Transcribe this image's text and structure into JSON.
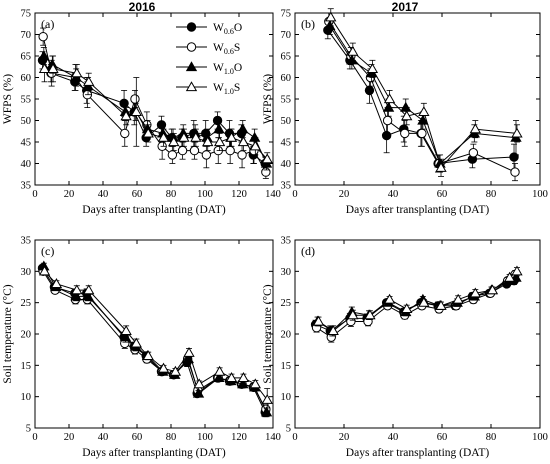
{
  "columns": [
    "2016",
    "2017"
  ],
  "legend": [
    {
      "id": "W06O",
      "base": "W",
      "sub": "0.6",
      "suffix": "O",
      "marker": "circle",
      "fill": "#000000"
    },
    {
      "id": "W06S",
      "base": "W",
      "sub": "0.6",
      "suffix": "S",
      "marker": "circle",
      "fill": "#ffffff"
    },
    {
      "id": "W10O",
      "base": "W",
      "sub": "1.0",
      "suffix": "O",
      "marker": "triangle",
      "fill": "#000000"
    },
    {
      "id": "W10S",
      "base": "W",
      "sub": "1.0",
      "suffix": "S",
      "marker": "triangle",
      "fill": "#ffffff"
    }
  ],
  "chart_data": [
    {
      "type": "line",
      "panel_label": "(a)",
      "xlabel": "Days after transplanting (DAT)",
      "ylabel": "WFPS (%)",
      "xlim": [
        0,
        140
      ],
      "ylim": [
        35,
        75
      ],
      "xticks": [
        0,
        20,
        40,
        60,
        80,
        100,
        120,
        140
      ],
      "yticks": [
        35,
        40,
        45,
        50,
        55,
        60,
        65,
        70,
        75
      ],
      "x": [
        5,
        10,
        24,
        31,
        53,
        59,
        66,
        75,
        81,
        87,
        94,
        101,
        108,
        115,
        122,
        129,
        136
      ],
      "series": [
        {
          "name": "W0.6O",
          "values": [
            64,
            61,
            59,
            57,
            54,
            52,
            46,
            49,
            46,
            46,
            47,
            47,
            50,
            47,
            47,
            42,
            40
          ],
          "err": [
            2,
            2,
            2,
            3,
            3,
            3,
            2,
            2,
            2,
            2,
            3,
            3,
            2,
            3,
            2,
            2,
            1.5
          ]
        },
        {
          "name": "W0.6S",
          "values": [
            69.5,
            61,
            60,
            56,
            47,
            55,
            49,
            44,
            42,
            43,
            43,
            42,
            43,
            43,
            42,
            43,
            38
          ],
          "err": [
            2,
            3,
            3,
            3,
            3,
            2,
            3,
            3,
            2,
            2,
            2,
            3,
            3,
            3,
            3,
            3,
            1.5
          ]
        },
        {
          "name": "W1.0O",
          "values": [
            65,
            63,
            60,
            58,
            52,
            52,
            48,
            47,
            46,
            47,
            47,
            46,
            48,
            46,
            48,
            46,
            40
          ],
          "err": [
            2,
            2,
            2,
            2,
            2,
            2,
            2,
            2,
            2,
            2,
            2,
            2,
            2,
            2,
            2,
            2,
            1.5
          ]
        },
        {
          "name": "W1.0S",
          "values": [
            62,
            62,
            61,
            59,
            51,
            52,
            47,
            46,
            45,
            46,
            46,
            45,
            45,
            46,
            45,
            44,
            41
          ],
          "err": [
            3,
            3,
            2,
            2,
            2,
            8,
            2,
            2,
            2,
            2,
            2,
            2,
            2,
            2,
            2,
            2,
            1.5
          ]
        }
      ]
    },
    {
      "type": "line",
      "panel_label": "(b)",
      "xlabel": "Days after transplanting (DAT)",
      "ylabel": "WFPS (%)",
      "xlim": [
        0,
        100
      ],
      "ylim": [
        35,
        75
      ],
      "xticks": [
        0,
        20,
        40,
        60,
        80,
        100
      ],
      "yticks": [
        35,
        40,
        45,
        50,
        55,
        60,
        65,
        70,
        75
      ],
      "x": [
        14,
        23,
        31,
        38,
        45,
        52,
        59,
        73,
        90
      ],
      "series": [
        {
          "name": "W0.6O",
          "values": [
            71,
            64,
            57,
            46.5,
            48,
            47,
            40,
            41,
            41.5
          ],
          "err": [
            2,
            2,
            3,
            4,
            3,
            3,
            2,
            2,
            3
          ]
        },
        {
          "name": "W0.6S",
          "values": [
            73,
            65,
            60,
            50,
            47,
            47,
            40,
            42.5,
            38
          ],
          "err": [
            2,
            2,
            2,
            3,
            3,
            3,
            2,
            2,
            2
          ]
        },
        {
          "name": "W1.0O",
          "values": [
            72,
            64,
            61,
            53,
            53,
            50,
            40,
            47,
            46
          ],
          "err": [
            2,
            2,
            2,
            2,
            2,
            2,
            2,
            2,
            4
          ]
        },
        {
          "name": "W1.0S",
          "values": [
            74,
            66,
            62,
            55,
            51,
            52,
            39,
            48,
            47
          ],
          "err": [
            2,
            2,
            2,
            2,
            2,
            2,
            2,
            2,
            2
          ]
        }
      ]
    },
    {
      "type": "line",
      "panel_label": "(c)",
      "xlabel": "Days after transplanting (DAT)",
      "ylabel": "Soil temperature (°C)",
      "xlim": [
        0,
        140
      ],
      "ylim": [
        5,
        35
      ],
      "xticks": [
        0,
        20,
        40,
        60,
        80,
        100,
        120,
        140
      ],
      "yticks": [
        5,
        10,
        15,
        20,
        25,
        30,
        35
      ],
      "x": [
        5,
        12,
        24,
        31,
        53,
        59,
        66,
        75,
        82,
        90,
        96,
        108,
        115,
        122,
        129,
        136
      ],
      "series": [
        {
          "name": "W0.6O",
          "values": [
            30.5,
            27.5,
            26.5,
            26.5,
            19.5,
            18,
            16.5,
            14,
            13.5,
            15.5,
            10.5,
            13,
            12.5,
            12,
            11.5,
            7.5
          ],
          "err": [
            0.5,
            0.5,
            0.7,
            0.7,
            0.8,
            0.7,
            0.6,
            0.5,
            0.5,
            0.7,
            0.5,
            0.6,
            0.6,
            0.6,
            0.6,
            0.7
          ]
        },
        {
          "name": "W0.6S",
          "values": [
            30,
            27,
            25.5,
            25.5,
            18.5,
            17.5,
            16,
            14,
            13.5,
            16,
            11,
            13,
            12.5,
            12,
            11.5,
            8
          ],
          "err": [
            0.5,
            0.5,
            0.7,
            0.7,
            0.8,
            0.7,
            0.6,
            0.5,
            0.5,
            0.7,
            0.5,
            0.6,
            0.6,
            0.6,
            0.6,
            0.7
          ]
        },
        {
          "name": "W1.0O",
          "values": [
            30.8,
            27.5,
            26,
            26,
            19.5,
            18,
            16.5,
            14,
            13.5,
            16,
            10.5,
            13,
            12.5,
            12,
            11.5,
            7.5
          ],
          "err": [
            0.5,
            0.5,
            0.7,
            0.7,
            0.8,
            0.7,
            0.6,
            0.5,
            0.5,
            0.7,
            0.5,
            0.6,
            0.6,
            0.6,
            0.6,
            0.7
          ]
        },
        {
          "name": "W1.0S",
          "values": [
            30,
            28,
            27,
            27,
            20.5,
            18.5,
            16.5,
            14.5,
            14,
            17,
            12,
            14,
            13,
            13,
            12,
            9.5
          ],
          "err": [
            0.5,
            0.5,
            0.7,
            0.7,
            0.8,
            0.7,
            0.6,
            0.5,
            0.5,
            0.7,
            0.5,
            0.6,
            0.6,
            0.6,
            0.6,
            1.8
          ]
        }
      ]
    },
    {
      "type": "line",
      "panel_label": "(d)",
      "xlabel": "Days after transplanting (DAT)",
      "ylabel": "Soil temperature (°C)",
      "xlim": [
        0,
        100
      ],
      "ylim": [
        5,
        35
      ],
      "xticks": [
        0,
        20,
        40,
        60,
        80,
        100
      ],
      "yticks": [
        5,
        10,
        15,
        20,
        25,
        30,
        35
      ],
      "x": [
        9,
        15,
        23,
        30,
        38,
        45,
        52,
        59,
        66,
        73,
        80,
        87,
        90
      ],
      "series": [
        {
          "name": "W0.6O",
          "values": [
            21.5,
            20.5,
            22.5,
            22.5,
            25,
            23.5,
            25,
            24.5,
            24.5,
            26,
            26.5,
            28,
            28.5
          ],
          "err": [
            0.7,
            0.8,
            0.8,
            0.7,
            0.5,
            0.6,
            0.5,
            0.6,
            0.6,
            0.6,
            0.5,
            0.5,
            0.6
          ]
        },
        {
          "name": "W0.6S",
          "values": [
            21,
            19.5,
            22,
            22,
            24.5,
            23,
            24.5,
            24,
            24.5,
            25.5,
            26.5,
            28.5,
            29.5
          ],
          "err": [
            0.7,
            0.8,
            0.8,
            0.7,
            0.5,
            0.6,
            0.5,
            0.6,
            0.6,
            0.6,
            0.5,
            0.5,
            0.6
          ]
        },
        {
          "name": "W1.0O",
          "values": [
            22,
            20.5,
            23.5,
            23,
            25,
            23.5,
            25.5,
            24.5,
            25,
            26,
            27,
            28.5,
            29
          ],
          "err": [
            0.7,
            0.8,
            0.8,
            0.7,
            0.5,
            0.6,
            0.5,
            0.6,
            0.6,
            0.6,
            0.5,
            0.5,
            0.6
          ]
        },
        {
          "name": "W1.0S",
          "values": [
            22,
            20.5,
            23,
            23,
            25.5,
            24,
            25,
            24.5,
            25.5,
            26.5,
            27,
            29,
            30
          ],
          "err": [
            0.7,
            0.8,
            0.8,
            0.7,
            0.5,
            0.6,
            0.5,
            0.6,
            0.6,
            0.6,
            0.5,
            0.5,
            0.6
          ]
        }
      ]
    }
  ]
}
